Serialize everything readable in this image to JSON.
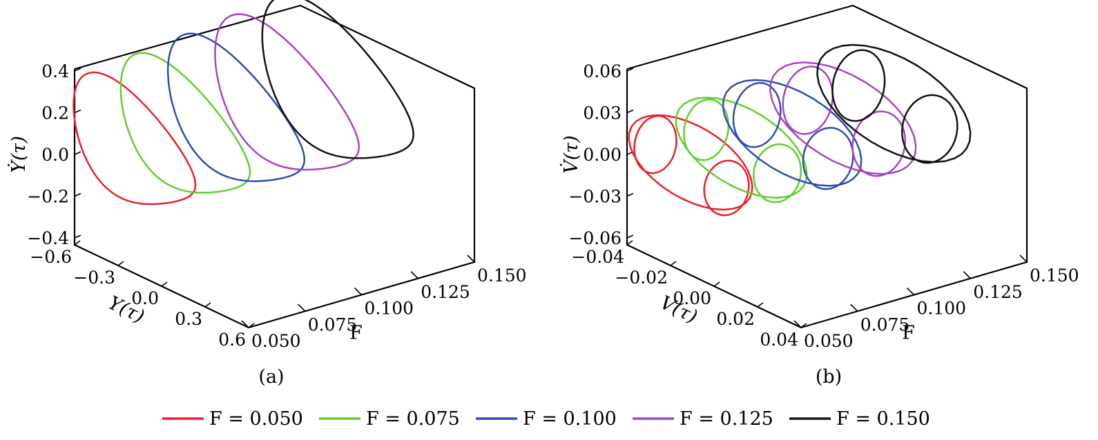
{
  "chart_data": [
    {
      "type": "line",
      "panel_caption": "(a)",
      "projection": "3d",
      "vertical_axis": {
        "label": "Ẏ(τ)",
        "range": [
          -0.4,
          0.4
        ],
        "ticks": [
          "0.4",
          "0.2",
          "0.0",
          "−0.2",
          "−0.4"
        ]
      },
      "depth_axis": {
        "label": "Y(τ)",
        "range": [
          -0.6,
          0.6
        ],
        "ticks": [
          "−0.6",
          "−0.3",
          "0.0",
          "0.3",
          "0.6"
        ]
      },
      "f_axis": {
        "label": "F",
        "range": [
          0.05,
          0.15
        ],
        "ticks": [
          "0.050",
          "0.075",
          "0.100",
          "0.125",
          "0.150"
        ]
      },
      "series": [
        {
          "name": "F = 0.050",
          "F": 0.05,
          "color": "#e8202a",
          "amp_depth": 0.52,
          "amp_vertical": 0.28,
          "shape": "single-loop"
        },
        {
          "name": "F = 0.075",
          "F": 0.075,
          "color": "#5fcf2c",
          "amp_depth": 0.54,
          "amp_vertical": 0.3,
          "shape": "single-loop"
        },
        {
          "name": "F = 0.100",
          "F": 0.1,
          "color": "#2e4bb4",
          "amp_depth": 0.55,
          "amp_vertical": 0.32,
          "shape": "single-loop"
        },
        {
          "name": "F = 0.125",
          "F": 0.125,
          "color": "#a544c0",
          "amp_depth": 0.56,
          "amp_vertical": 0.33,
          "shape": "single-loop"
        },
        {
          "name": "F = 0.150",
          "F": 0.15,
          "color": "#111111",
          "amp_depth": 0.6,
          "amp_vertical": 0.35,
          "shape": "single-loop"
        }
      ]
    },
    {
      "type": "line",
      "panel_caption": "(b)",
      "projection": "3d",
      "vertical_axis": {
        "label": "V̇(τ)",
        "range": [
          -0.06,
          0.06
        ],
        "ticks": [
          "0.06",
          "0.03",
          "0.00",
          "−0.03",
          "−0.06"
        ]
      },
      "depth_axis": {
        "label": "V(τ)",
        "range": [
          -0.04,
          0.04
        ],
        "ticks": [
          "−0.04",
          "−0.02",
          "0.00",
          "0.02",
          "0.04"
        ]
      },
      "f_axis": {
        "label": "F",
        "range": [
          0.05,
          0.15
        ],
        "ticks": [
          "0.050",
          "0.075",
          "0.100",
          "0.125",
          "0.150"
        ]
      },
      "series": [
        {
          "name": "F = 0.050",
          "F": 0.05,
          "color": "#e8202a",
          "shape": "three-ellipse"
        },
        {
          "name": "F = 0.075",
          "F": 0.075,
          "color": "#5fcf2c",
          "shape": "three-ellipse"
        },
        {
          "name": "F = 0.100",
          "F": 0.1,
          "color": "#2e4bb4",
          "shape": "three-ellipse"
        },
        {
          "name": "F = 0.125",
          "F": 0.125,
          "color": "#a544c0",
          "shape": "three-ellipse"
        },
        {
          "name": "F = 0.150",
          "F": 0.15,
          "color": "#111111",
          "shape": "three-ellipse"
        }
      ]
    }
  ],
  "legend": {
    "placement": "bottom",
    "items": [
      {
        "label": "F = 0.050",
        "color": "#e8202a"
      },
      {
        "label": "F = 0.075",
        "color": "#5fcf2c"
      },
      {
        "label": "F = 0.100",
        "color": "#2e4bb4"
      },
      {
        "label": "F = 0.125",
        "color": "#a544c0"
      },
      {
        "label": "F = 0.150",
        "color": "#111111"
      }
    ]
  }
}
